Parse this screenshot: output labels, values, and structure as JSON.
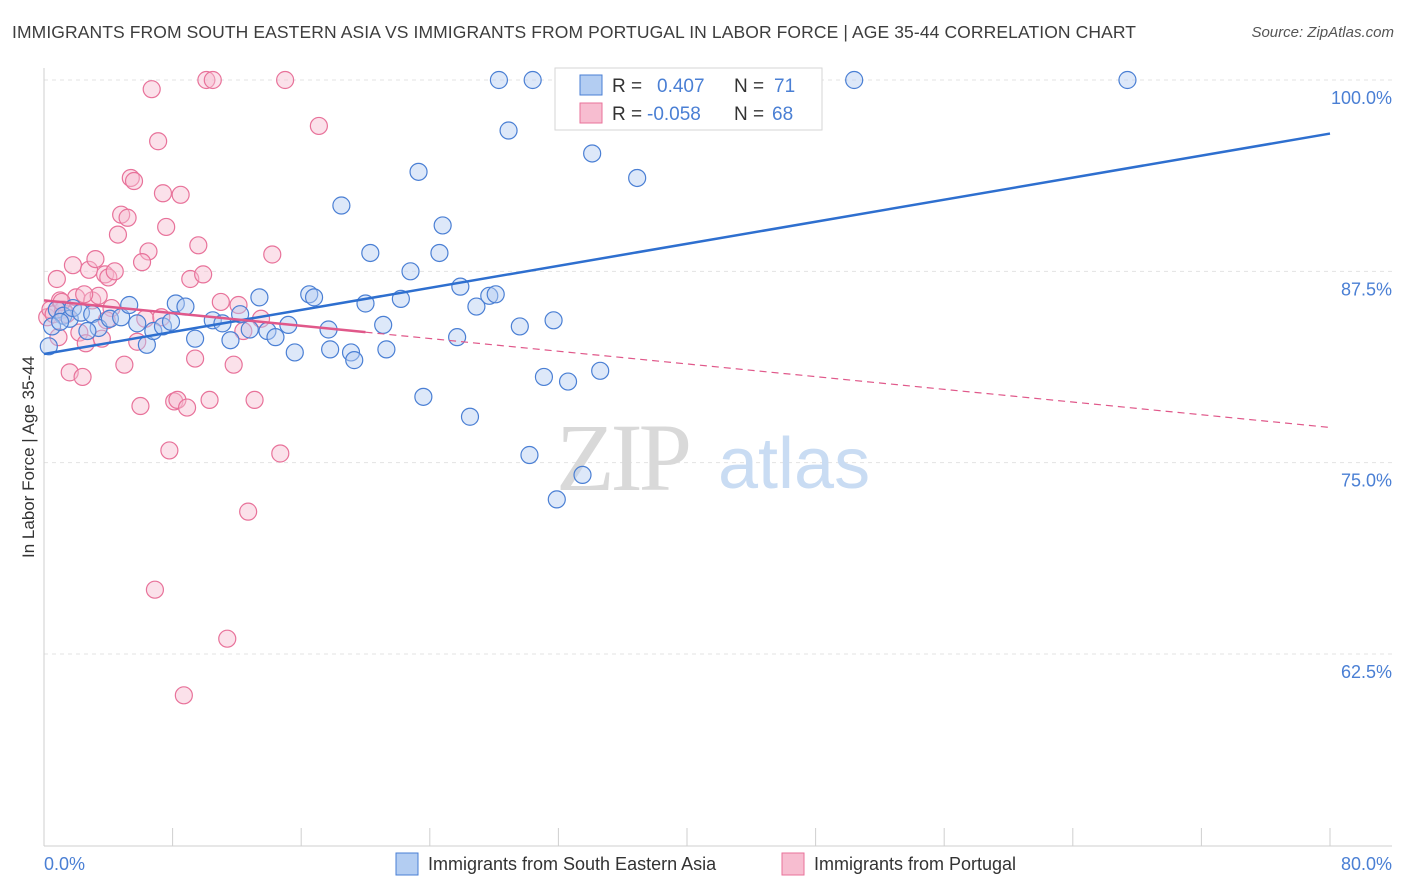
{
  "title": "IMMIGRANTS FROM SOUTH EASTERN ASIA VS IMMIGRANTS FROM PORTUGAL IN LABOR FORCE | AGE 35-44 CORRELATION CHART",
  "source": "Source: ZipAtlas.com",
  "watermark": {
    "zip": "ZIP",
    "atlas": "atlas"
  },
  "colors": {
    "blue": "#4a7fd4",
    "blue_fill": "#b3cdf2",
    "blue_line": "#2e6fcf",
    "pink": "#e8729a",
    "pink_fill": "#f7bdd0",
    "pink_line": "#e0588a",
    "tick_label": "#4a7fd4",
    "grid": "#e3e3e3"
  },
  "legend_box": {
    "row1": {
      "r_label": "R = ",
      "r_value": "0.407",
      "n_label": "N = ",
      "n_value": "71"
    },
    "row2": {
      "r_label": "R = ",
      "r_value": "-0.058",
      "n_label": "N = ",
      "n_value": "68"
    }
  },
  "chart_data": {
    "type": "scatter",
    "title": "IMMIGRANTS FROM SOUTH EASTERN ASIA VS IMMIGRANTS FROM PORTUGAL IN LABOR FORCE | AGE 35-44 CORRELATION CHART",
    "xlabel": "",
    "ylabel": "In Labor Force | Age 35-44",
    "xlim": [
      0,
      80
    ],
    "ylim": [
      50,
      100
    ],
    "x_tick_labels": [
      "0.0%",
      "80.0%"
    ],
    "y_ticks": [
      62.5,
      75.0,
      87.5,
      100.0
    ],
    "y_tick_labels": [
      "62.5%",
      "75.0%",
      "87.5%",
      "100.0%"
    ],
    "grid": "horizontal dashed",
    "legend_position": "bottom-center",
    "series": [
      {
        "name": "Immigrants from South Eastern Asia",
        "color": "#4a7fd4",
        "r": 0.407,
        "n": 71,
        "trend": {
          "x": [
            0,
            80
          ],
          "y": [
            82.1,
            96.5
          ]
        },
        "points": [
          [
            0.3,
            82.6
          ],
          [
            0.8,
            85.0
          ],
          [
            1.2,
            84.6
          ],
          [
            1.6,
            84.4
          ],
          [
            1.8,
            85.1
          ],
          [
            2.3,
            84.8
          ],
          [
            3.0,
            84.7
          ],
          [
            3.4,
            83.8
          ],
          [
            4.1,
            84.4
          ],
          [
            4.8,
            84.5
          ],
          [
            5.3,
            85.3
          ],
          [
            5.8,
            84.1
          ],
          [
            6.4,
            82.7
          ],
          [
            6.8,
            83.6
          ],
          [
            7.4,
            83.9
          ],
          [
            7.9,
            84.2
          ],
          [
            8.2,
            85.4
          ],
          [
            8.8,
            85.2
          ],
          [
            9.4,
            83.1
          ],
          [
            10.5,
            84.3
          ],
          [
            11.1,
            84.1
          ],
          [
            11.6,
            83.0
          ],
          [
            12.2,
            84.7
          ],
          [
            12.8,
            83.7
          ],
          [
            13.4,
            85.8
          ],
          [
            13.9,
            83.6
          ],
          [
            14.4,
            83.2
          ],
          [
            15.2,
            84.0
          ],
          [
            15.6,
            82.2
          ],
          [
            16.5,
            86.0
          ],
          [
            16.8,
            85.8
          ],
          [
            17.7,
            83.7
          ],
          [
            17.8,
            82.4
          ],
          [
            18.5,
            91.8
          ],
          [
            19.1,
            82.2
          ],
          [
            19.3,
            81.7
          ],
          [
            20.0,
            85.4
          ],
          [
            20.3,
            88.7
          ],
          [
            21.1,
            84.0
          ],
          [
            21.3,
            82.4
          ],
          [
            22.2,
            85.7
          ],
          [
            22.8,
            87.5
          ],
          [
            23.3,
            94.0
          ],
          [
            23.6,
            79.3
          ],
          [
            24.6,
            88.7
          ],
          [
            24.8,
            90.5
          ],
          [
            25.7,
            83.2
          ],
          [
            25.9,
            86.5
          ],
          [
            26.5,
            78.0
          ],
          [
            26.9,
            85.2
          ],
          [
            27.7,
            85.9
          ],
          [
            28.1,
            86.0
          ],
          [
            28.3,
            100.0
          ],
          [
            28.9,
            96.7
          ],
          [
            29.6,
            83.9
          ],
          [
            30.2,
            75.5
          ],
          [
            30.4,
            100.0
          ],
          [
            31.1,
            80.6
          ],
          [
            31.7,
            84.3
          ],
          [
            31.9,
            72.6
          ],
          [
            32.6,
            80.3
          ],
          [
            33.5,
            74.2
          ],
          [
            34.1,
            95.2
          ],
          [
            34.6,
            81.0
          ],
          [
            36.9,
            93.6
          ],
          [
            43.0,
            100.0
          ],
          [
            50.4,
            100.0
          ],
          [
            67.4,
            100.0
          ],
          [
            0.5,
            83.9
          ],
          [
            1.0,
            84.2
          ],
          [
            2.7,
            83.6
          ]
        ]
      },
      {
        "name": "Immigrants from Portugal",
        "color": "#e8729a",
        "r": -0.058,
        "n": 68,
        "trend": {
          "x": [
            0,
            80
          ],
          "y": [
            85.6,
            77.3
          ],
          "solid_until": 20
        },
        "points": [
          [
            0.2,
            84.5
          ],
          [
            0.4,
            85.0
          ],
          [
            0.6,
            84.7
          ],
          [
            0.8,
            87.0
          ],
          [
            1.0,
            85.6
          ],
          [
            1.2,
            85.0
          ],
          [
            1.4,
            84.7
          ],
          [
            1.6,
            80.9
          ],
          [
            1.8,
            87.9
          ],
          [
            2.0,
            85.8
          ],
          [
            2.2,
            83.5
          ],
          [
            2.4,
            80.6
          ],
          [
            2.6,
            82.8
          ],
          [
            2.8,
            87.6
          ],
          [
            3.0,
            85.6
          ],
          [
            3.2,
            88.3
          ],
          [
            3.4,
            85.9
          ],
          [
            3.6,
            83.1
          ],
          [
            3.8,
            87.3
          ],
          [
            4.0,
            87.1
          ],
          [
            4.2,
            85.1
          ],
          [
            4.4,
            87.5
          ],
          [
            4.6,
            89.9
          ],
          [
            4.8,
            91.2
          ],
          [
            5.0,
            81.4
          ],
          [
            5.2,
            91.0
          ],
          [
            5.4,
            93.6
          ],
          [
            5.6,
            93.4
          ],
          [
            5.8,
            82.9
          ],
          [
            6.0,
            78.7
          ],
          [
            6.3,
            84.4
          ],
          [
            6.5,
            88.8
          ],
          [
            6.7,
            99.4
          ],
          [
            6.9,
            66.7
          ],
          [
            7.1,
            96.0
          ],
          [
            7.4,
            92.6
          ],
          [
            7.6,
            90.4
          ],
          [
            7.8,
            75.8
          ],
          [
            8.1,
            79.0
          ],
          [
            8.3,
            79.1
          ],
          [
            8.5,
            92.5
          ],
          [
            8.7,
            59.8
          ],
          [
            8.9,
            78.6
          ],
          [
            9.1,
            87.0
          ],
          [
            9.4,
            81.8
          ],
          [
            9.6,
            89.2
          ],
          [
            9.9,
            87.3
          ],
          [
            10.1,
            100.0
          ],
          [
            10.3,
            79.1
          ],
          [
            10.5,
            100.0
          ],
          [
            11.0,
            85.5
          ],
          [
            11.4,
            63.5
          ],
          [
            11.8,
            81.4
          ],
          [
            12.1,
            85.3
          ],
          [
            12.4,
            83.6
          ],
          [
            12.7,
            71.8
          ],
          [
            13.1,
            79.1
          ],
          [
            13.5,
            84.4
          ],
          [
            14.2,
            88.6
          ],
          [
            14.7,
            75.6
          ],
          [
            15.0,
            100.0
          ],
          [
            17.1,
            97.0
          ],
          [
            2.5,
            86.0
          ],
          [
            1.1,
            85.5
          ],
          [
            3.9,
            84.3
          ],
          [
            6.1,
            88.1
          ],
          [
            0.9,
            83.2
          ],
          [
            7.3,
            84.5
          ]
        ]
      }
    ]
  }
}
